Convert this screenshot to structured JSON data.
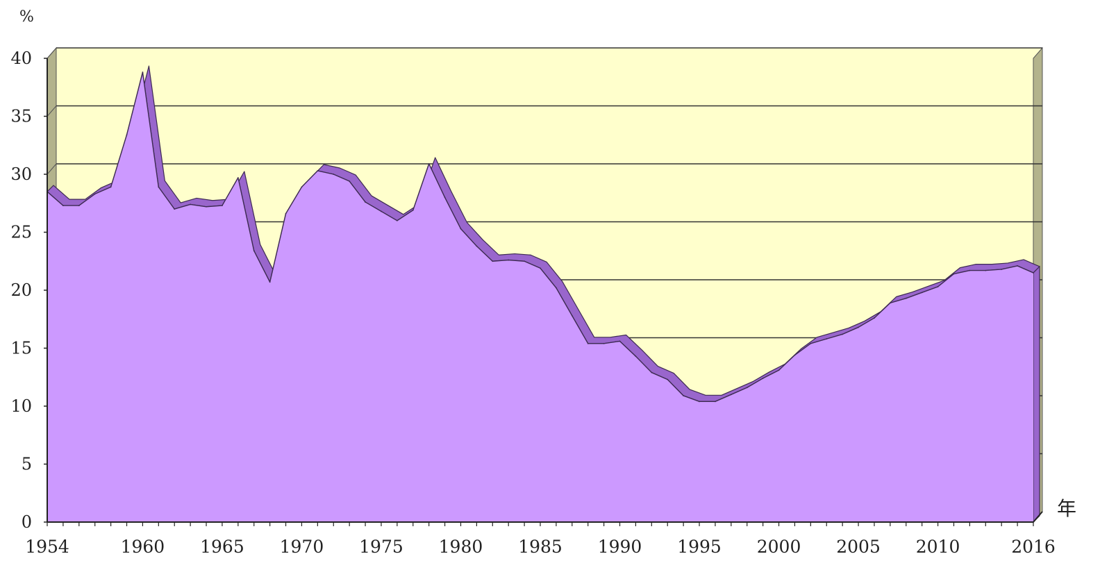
{
  "chart_data": {
    "type": "area",
    "title": "",
    "ylabel": "%",
    "xlabel": "年",
    "ylim": [
      0,
      40
    ],
    "xlim": [
      1954,
      2016
    ],
    "grid": true,
    "legend": "none",
    "y_ticks": [
      "0",
      "5",
      "10",
      "15",
      "20",
      "25",
      "30",
      "35",
      "40"
    ],
    "x_ticks": [
      "1954",
      "1960",
      "1965",
      "1970",
      "1975",
      "1980",
      "1985",
      "1990",
      "1995",
      "2000",
      "2005",
      "2010",
      "2016"
    ],
    "series": [
      {
        "x": [
          1954,
          1955,
          1956,
          1957,
          1958,
          1959,
          1960,
          1961,
          1962,
          1963,
          1964,
          1965,
          1966,
          1967,
          1968,
          1969,
          1970,
          1971,
          1972,
          1973,
          1974,
          1975,
          1976,
          1977,
          1978,
          1979,
          1980,
          1981,
          1982,
          1983,
          1984,
          1985,
          1986,
          1987,
          1988,
          1989,
          1990,
          1991,
          1992,
          1993,
          1994,
          1995,
          1996,
          1997,
          1998,
          1999,
          2000,
          2001,
          2002,
          2003,
          2004,
          2005,
          2006,
          2007,
          2008,
          2009,
          2010,
          2011,
          2012,
          2013,
          2014,
          2015,
          2016
        ],
        "values": [
          28.5,
          27.3,
          27.3,
          28.3,
          28.9,
          33.4,
          38.8,
          28.9,
          27.0,
          27.4,
          27.2,
          27.3,
          29.7,
          23.4,
          20.7,
          26.6,
          28.9,
          30.3,
          30.0,
          29.4,
          27.6,
          26.8,
          26.0,
          26.9,
          30.9,
          28.0,
          25.3,
          23.8,
          22.5,
          22.6,
          22.5,
          21.9,
          20.2,
          17.8,
          15.4,
          15.4,
          15.6,
          14.3,
          12.9,
          12.3,
          10.9,
          10.4,
          10.4,
          11.0,
          11.6,
          12.4,
          13.1,
          14.4,
          15.4,
          15.8,
          16.2,
          16.8,
          17.6,
          18.9,
          19.3,
          19.8,
          20.3,
          21.4,
          21.7,
          21.7,
          21.8,
          22.1,
          21.5
        ],
        "color": "#cc99ff"
      }
    ],
    "colors": {
      "area": "#cc99ff",
      "area_edge": "#9966cc",
      "plot_background": "#ffffcc",
      "left_wall": "#b3b38c",
      "gridline": "#333333"
    }
  }
}
